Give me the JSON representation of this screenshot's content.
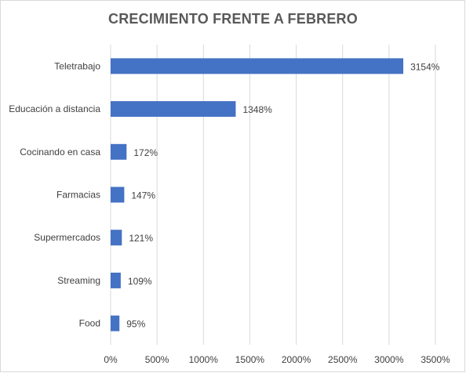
{
  "chart_data": {
    "type": "bar",
    "orientation": "horizontal",
    "title": "CRECIMIENTO FRENTE A FEBRERO",
    "categories": [
      "Teletrabajo",
      "Educación a distancia",
      "Cocinando en casa",
      "Farmacias",
      "Supermercados",
      "Streaming",
      "Food"
    ],
    "values": [
      3154,
      1348,
      172,
      147,
      121,
      109,
      95
    ],
    "data_labels": [
      "3154%",
      "1348%",
      "172%",
      "147%",
      "121%",
      "109%",
      "95%"
    ],
    "xlim": [
      0,
      3500
    ],
    "x_ticks": [
      0,
      500,
      1000,
      1500,
      2000,
      2500,
      3000,
      3500
    ],
    "x_tick_labels": [
      "0%",
      "500%",
      "1000%",
      "1500%",
      "2000%",
      "2500%",
      "3000%",
      "3500%"
    ],
    "xlabel": "",
    "ylabel": "",
    "grid": "vertical",
    "legend": "none",
    "bar_color": "#4472c4",
    "grid_color": "#d9d9d9"
  }
}
